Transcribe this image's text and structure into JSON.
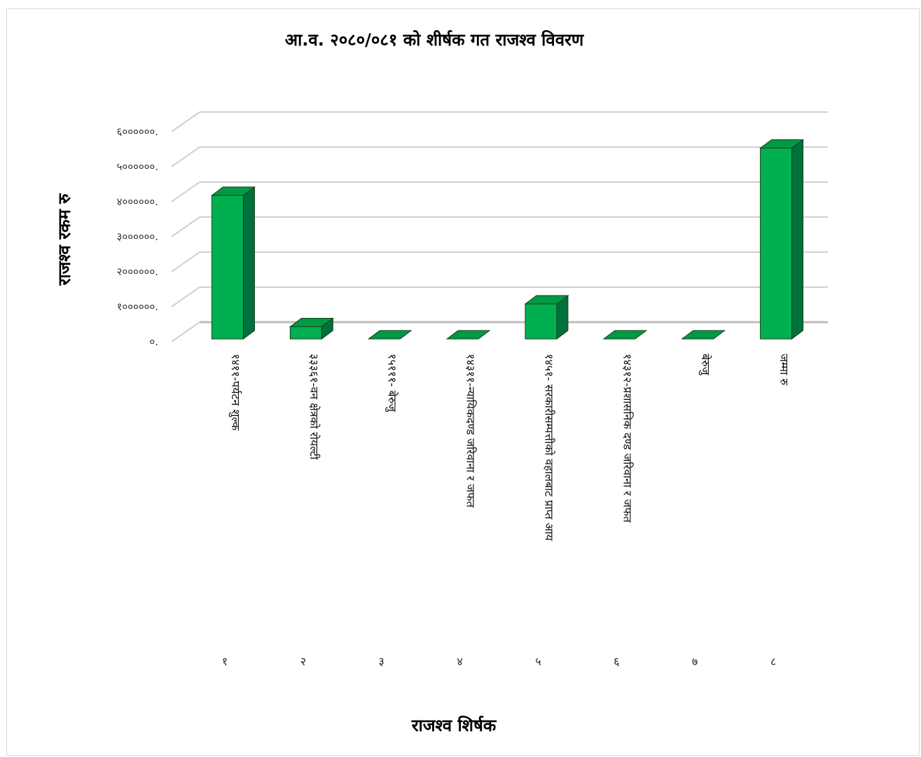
{
  "chart_data": {
    "type": "bar",
    "title": "आ.व. २०८०/०८१ को शीर्षक गत राजश्व विवरण",
    "xlabel": "राजश्व शिर्षक",
    "ylabel": "राजश्व रकम रु",
    "categories": [
      "१४११-पर्यटन शुल्क",
      "३३३६१-वन क्षेत्रको रोयल्टी",
      "१५१११- बेरुजु",
      "१४३११-न्यायिकदण्ड जरिवाना र जफत",
      "१४५१- सरकारीसम्पत्तीको वहालबाट प्राप्त आय",
      "१४३१२-प्रशासनिक दण्ड जरिवाना र जफत",
      "बेरुजु",
      "जम्मा रु"
    ],
    "category_numbers": [
      "१",
      "२",
      "३",
      "४",
      "५",
      "६",
      "७",
      "८"
    ],
    "series": [
      {
        "values": [
          4100000,
          350000,
          0,
          0,
          1000000,
          0,
          0,
          5450000
        ]
      }
    ],
    "ylim": [
      0,
      6000000
    ],
    "yticks": [
      "०.",
      "१००००००.",
      "२००००००.",
      "३००००००.",
      "४००००००.",
      "५००००००.",
      "६००००००."
    ],
    "grid": true,
    "bar_color": "#00b050",
    "bar_side_color": "#00703c",
    "bar_top_color": "#009944"
  }
}
